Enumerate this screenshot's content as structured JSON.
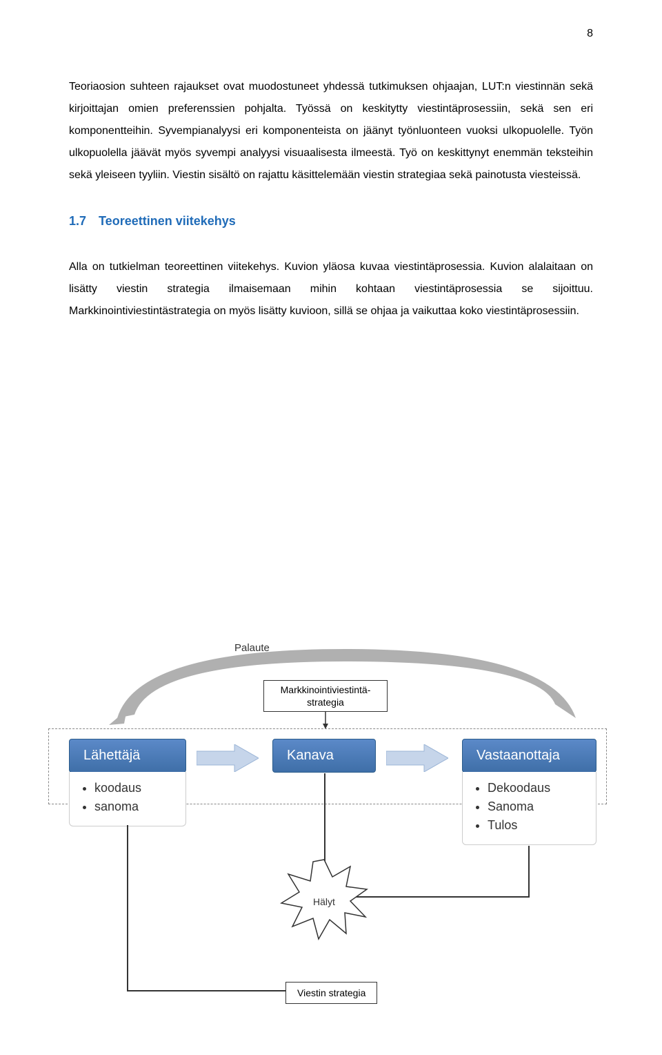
{
  "page_number": "8",
  "para1": "Teoriaosion suhteen rajaukset ovat muodostuneet yhdessä tutkimuksen ohjaajan, LUT:n viestinnän sekä kirjoittajan omien preferenssien pohjalta. Työssä on keskitytty viestintäprosessiin, sekä sen eri komponentteihin. Syvempianalyysi eri komponenteista on jäänyt työnluonteen vuoksi ulkopuolelle. Työn ulkopuolella jäävät myös syvempi analyysi visuaalisesta ilmeestä. Työ on keskittynyt enemmän teksteihin sekä yleiseen tyyliin. Viestin sisältö on rajattu käsittelemään viestin strategiaa sekä painotusta viesteissä.",
  "heading": "1.7 Teoreettinen viitekehys",
  "para2": "Alla on tutkielman teoreettinen viitekehys. Kuvion yläosa kuvaa viestintäprosessia. Kuvion alalaitaan on lisätty viestin strategia ilmaisemaan mihin kohtaan viestintäprosessia se sijoittuu. Markkinointiviestintästrategia on myös lisätty kuvioon, sillä se ohjaa ja vaikuttaa koko viestintäprosessiin.",
  "diagram": {
    "feedback_label": "Palaute",
    "strategy_box": "Markkinointiviestintä-\nstrategia",
    "sender": {
      "label": "Lähettäjä",
      "bullets": [
        "koodaus",
        "sanoma"
      ]
    },
    "channel": {
      "label": "Kanava"
    },
    "receiver": {
      "label": "Vastaanottaja",
      "bullets": [
        "Dekoodaus",
        "Sanoma",
        "Tulos"
      ]
    },
    "noise": "Hälyt",
    "msg_strategy": "Viestin strategia",
    "colors": {
      "box_top": "#5b89c8",
      "box_bottom": "#3f6fa8",
      "arrow_fill": "#c6d5ea",
      "arrow_stroke": "#9ab4d6",
      "feedback_fill": "#b0b0b0",
      "star_fill": "#ffffff",
      "star_stroke": "#333333"
    }
  }
}
